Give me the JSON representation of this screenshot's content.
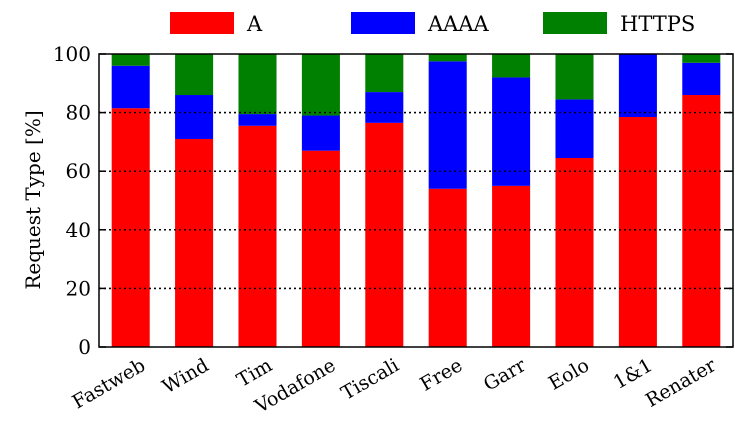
{
  "chart_data": {
    "type": "bar",
    "stacked": true,
    "categories": [
      "Fastweb",
      "Wind",
      "Tim",
      "Vodafone",
      "Tiscali",
      "Free",
      "Garr",
      "Eolo",
      "1&1",
      "Renater"
    ],
    "series": [
      {
        "name": "A",
        "color": "#ff0000",
        "values": [
          81.5,
          71,
          75.5,
          67,
          76.5,
          54,
          55,
          64.5,
          78.5,
          86
        ]
      },
      {
        "name": "AAAA",
        "color": "#0000ff",
        "values": [
          14.5,
          15,
          4,
          12,
          10.5,
          43.5,
          37,
          20,
          21.5,
          11
        ]
      },
      {
        "name": "HTTPS",
        "color": "#008000",
        "values": [
          4,
          14,
          20.5,
          21,
          13,
          2.5,
          8,
          15.5,
          0,
          3
        ]
      }
    ],
    "xlabel": "",
    "ylabel": "Request Type [%]",
    "ylim": [
      0,
      100
    ],
    "yticks": [
      0,
      20,
      40,
      60,
      80,
      100
    ],
    "grid": "horizontal dotted",
    "legend_position": "top"
  }
}
